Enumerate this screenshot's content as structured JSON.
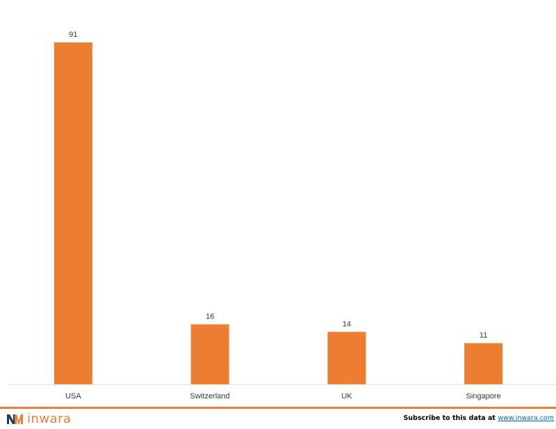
{
  "chart_data": {
    "type": "bar",
    "categories": [
      "USA",
      "Switzerland",
      "UK",
      "Singapore"
    ],
    "values": [
      91,
      16,
      14,
      11
    ],
    "title": "",
    "xlabel": "",
    "ylabel": "",
    "ylim": [
      0,
      91
    ],
    "grid": false,
    "legend": "none",
    "bar_color": "#ed7d31",
    "data_labels": true
  },
  "footer": {
    "brand_name": "inwara",
    "brand_color": "#ed7d31",
    "subscribe_text": "Subscribe to this data at ",
    "subscribe_link": "www.inwara.com",
    "logo_icon": "inwara-logo-icon"
  }
}
